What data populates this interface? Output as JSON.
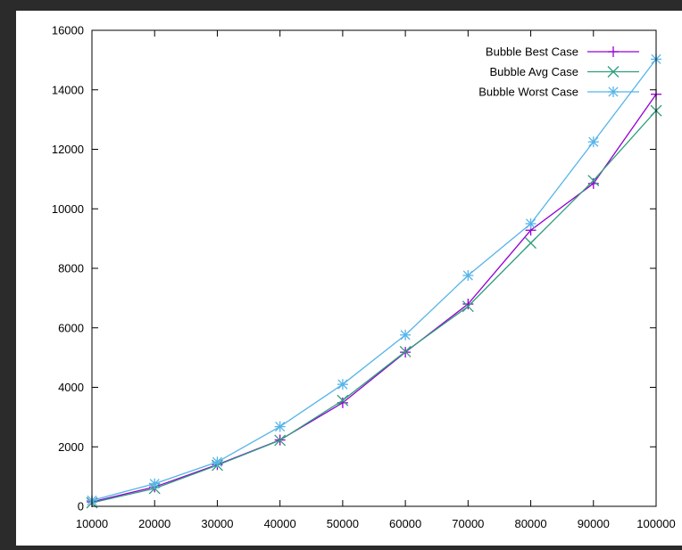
{
  "chart_data": {
    "type": "line",
    "title": "",
    "xlabel": "",
    "ylabel": "",
    "x": [
      10000,
      20000,
      30000,
      40000,
      50000,
      60000,
      70000,
      80000,
      90000,
      100000
    ],
    "xlim": [
      10000,
      100000
    ],
    "ylim": [
      0,
      16000
    ],
    "xticks": [
      "10000",
      "20000",
      "30000",
      "40000",
      "50000",
      "60000",
      "70000",
      "80000",
      "90000",
      "100000"
    ],
    "yticks": [
      "0",
      "2000",
      "4000",
      "6000",
      "8000",
      "10000",
      "12000",
      "14000",
      "16000"
    ],
    "grid": false,
    "legend_position": "top-right",
    "series": [
      {
        "name": "Bubble Best Case",
        "color": "#9400d3",
        "marker": "plus",
        "values": [
          150,
          650,
          1400,
          2230,
          3480,
          5180,
          6800,
          9280,
          10850,
          13850
        ]
      },
      {
        "name": "Bubble Avg Case",
        "color": "#2f9e7c",
        "marker": "cross",
        "values": [
          120,
          600,
          1380,
          2220,
          3560,
          5200,
          6720,
          8850,
          10950,
          13300
        ]
      },
      {
        "name": "Bubble Worst Case",
        "color": "#56b4e9",
        "marker": "star",
        "values": [
          200,
          760,
          1490,
          2680,
          4100,
          5760,
          7760,
          9500,
          12250,
          15030
        ]
      }
    ]
  }
}
